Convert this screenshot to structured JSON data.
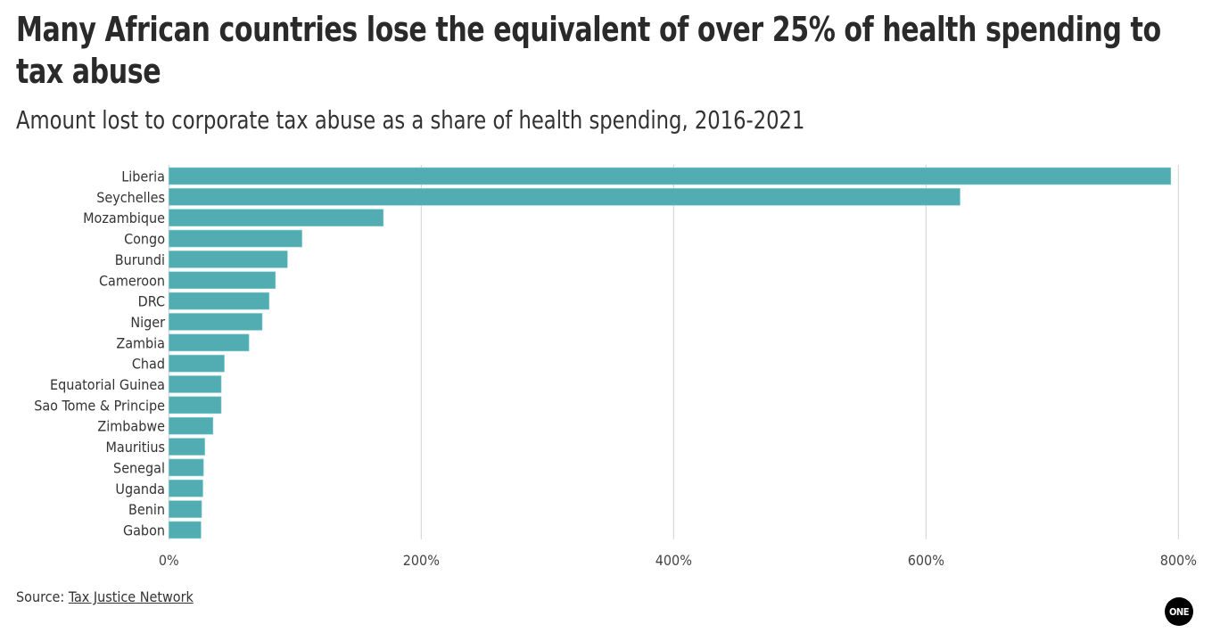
{
  "header": {
    "title": "Many African countries lose the equivalent of over 25% of health spending to tax abuse",
    "subtitle": "Amount lost to corporate tax abuse as a share of health spending, 2016-2021"
  },
  "footer": {
    "source_prefix": "Source: ",
    "source_link": "Tax Justice Network",
    "logo_text": "ONE"
  },
  "chart_data": {
    "type": "bar",
    "orientation": "horizontal",
    "title": "Many African countries lose the equivalent of over 25% of health spending to tax abuse",
    "subtitle": "Amount lost to corporate tax abuse as a share of health spending, 2016-2021",
    "categories": [
      "Liberia",
      "Seychelles",
      "Mozambique",
      "Congo",
      "Burundi",
      "Cameroon",
      "DRC",
      "Niger",
      "Zambia",
      "Chad",
      "Equatorial Guinea",
      "Sao Tome & Principe",
      "Zimbabwe",
      "Mauritius",
      "Senegal",
      "Uganda",
      "Benin",
      "Gabon"
    ],
    "values": [
      794,
      627,
      170,
      105.5,
      94,
      84.5,
      79.5,
      74,
      63.5,
      44,
      41.5,
      41.5,
      35,
      28.5,
      27.5,
      27,
      26,
      25.5
    ],
    "unit": "%",
    "xlim": [
      0,
      800
    ],
    "x_ticks": [
      0,
      200,
      400,
      600,
      800
    ],
    "x_tick_labels": [
      "0%",
      "200%",
      "400%",
      "600%",
      "800%"
    ],
    "grid": "vertical",
    "bar_color": "#52adb3",
    "grid_color": "#d0d0d0"
  }
}
